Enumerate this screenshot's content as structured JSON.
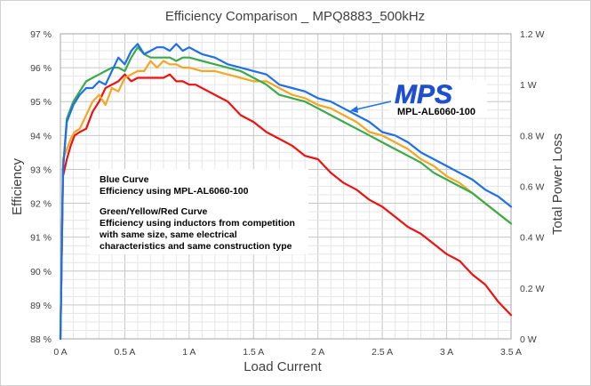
{
  "chart_data": {
    "type": "line",
    "title": "Efficiency Comparison _ MPQ8883_500kHz",
    "xlabel": "Load Current",
    "ylabel": "Efficiency",
    "y2label": "Total Power Loss",
    "xlim": [
      0,
      3.5
    ],
    "ylim": [
      88,
      97
    ],
    "y2lim": [
      0,
      1.2
    ],
    "xticks": [
      "0 A",
      "0.5 A",
      "1 A",
      "1.5 A",
      "2 A",
      "2.5 A",
      "3 A",
      "3.5 A"
    ],
    "yticks": [
      "88 %",
      "89 %",
      "90 %",
      "91 %",
      "92 %",
      "93 %",
      "94 %",
      "95 %",
      "96 %",
      "97 %"
    ],
    "y2ticks": [
      "0 W",
      "0.2 W",
      "0.4 W",
      "0.6 W",
      "0.8 W",
      "1 W",
      "1.2 W"
    ],
    "grid": true,
    "series": [
      {
        "color": "#ee1111",
        "axis": "left",
        "x": [
          0.0,
          0.02,
          0.05,
          0.08,
          0.11,
          0.15,
          0.2,
          0.25,
          0.3,
          0.35,
          0.4,
          0.45,
          0.5,
          0.55,
          0.6,
          0.65,
          0.7,
          0.75,
          0.8,
          0.85,
          0.9,
          0.95,
          1.0,
          1.05,
          1.1,
          1.15,
          1.2,
          1.3,
          1.4,
          1.5,
          1.6,
          1.7,
          1.8,
          1.9,
          2.0,
          2.1,
          2.2,
          2.3,
          2.4,
          2.5,
          2.6,
          2.7,
          2.8,
          2.9,
          3.0,
          3.1,
          3.2,
          3.3,
          3.4,
          3.5
        ],
        "values": [
          88.0,
          92.8,
          93.3,
          93.7,
          94.0,
          94.1,
          94.2,
          94.7,
          95.0,
          95.4,
          95.5,
          95.6,
          95.8,
          95.6,
          95.7,
          95.7,
          95.7,
          95.7,
          95.7,
          95.8,
          95.6,
          95.6,
          95.5,
          95.5,
          95.4,
          95.3,
          95.2,
          95.0,
          94.6,
          94.4,
          94.1,
          93.9,
          93.7,
          93.4,
          93.3,
          92.9,
          92.6,
          92.4,
          92.1,
          91.9,
          91.6,
          91.3,
          91.1,
          90.8,
          90.5,
          90.3,
          89.9,
          89.6,
          89.1,
          88.7
        ]
      },
      {
        "color": "#f5a623",
        "axis": "left",
        "x": [
          0.0,
          0.02,
          0.05,
          0.08,
          0.11,
          0.15,
          0.2,
          0.25,
          0.3,
          0.35,
          0.4,
          0.45,
          0.5,
          0.55,
          0.6,
          0.65,
          0.7,
          0.75,
          0.8,
          0.85,
          0.9,
          0.95,
          1.0,
          1.1,
          1.2,
          1.3,
          1.4,
          1.5,
          1.6,
          1.7,
          1.8,
          1.9,
          2.0,
          2.1,
          2.2,
          2.3,
          2.4,
          2.5,
          2.6,
          2.7,
          2.8,
          2.9,
          3.0,
          3.1,
          3.2,
          3.3,
          3.4,
          3.5
        ],
        "values": [
          88.0,
          93.3,
          93.6,
          93.9,
          94.1,
          94.2,
          94.6,
          95.0,
          95.2,
          94.9,
          95.4,
          95.3,
          95.7,
          95.8,
          95.9,
          95.9,
          96.2,
          96.0,
          96.2,
          96.1,
          96.1,
          96.0,
          96.0,
          95.9,
          95.9,
          95.8,
          95.7,
          95.6,
          95.6,
          95.4,
          95.2,
          95.1,
          94.9,
          94.8,
          94.6,
          94.4,
          94.1,
          94.0,
          93.8,
          93.6,
          93.3,
          93.1,
          92.8,
          92.6,
          92.3,
          92.0,
          91.7,
          91.4
        ]
      },
      {
        "color": "#3aaa4a",
        "axis": "left",
        "x": [
          0.0,
          0.02,
          0.05,
          0.1,
          0.15,
          0.2,
          0.25,
          0.3,
          0.35,
          0.4,
          0.45,
          0.5,
          0.55,
          0.6,
          0.65,
          0.7,
          0.75,
          0.8,
          0.85,
          0.9,
          0.95,
          1.0,
          1.1,
          1.2,
          1.3,
          1.4,
          1.5,
          1.6,
          1.7,
          1.8,
          1.9,
          2.0,
          2.1,
          2.2,
          2.3,
          2.4,
          2.5,
          2.6,
          2.7,
          2.8,
          2.9,
          3.0,
          3.1,
          3.2,
          3.3,
          3.4,
          3.5
        ],
        "values": [
          88.0,
          93.0,
          94.5,
          95.0,
          95.3,
          95.6,
          95.7,
          95.8,
          95.9,
          96.0,
          96.0,
          95.9,
          96.3,
          96.6,
          96.4,
          96.3,
          96.3,
          96.3,
          96.3,
          96.2,
          96.3,
          96.3,
          96.2,
          96.1,
          96.0,
          95.9,
          95.7,
          95.5,
          95.2,
          95.1,
          95.0,
          94.8,
          94.6,
          94.4,
          94.2,
          94.0,
          93.8,
          93.6,
          93.4,
          93.2,
          92.9,
          92.7,
          92.5,
          92.3,
          92.0,
          91.7,
          91.4
        ]
      },
      {
        "color": "#1f6fe8",
        "axis": "left",
        "x": [
          0.0,
          0.02,
          0.05,
          0.1,
          0.15,
          0.2,
          0.25,
          0.3,
          0.35,
          0.4,
          0.45,
          0.5,
          0.55,
          0.6,
          0.65,
          0.7,
          0.75,
          0.8,
          0.85,
          0.9,
          0.95,
          1.0,
          1.05,
          1.1,
          1.2,
          1.3,
          1.4,
          1.5,
          1.6,
          1.7,
          1.8,
          1.9,
          2.0,
          2.1,
          2.2,
          2.3,
          2.4,
          2.5,
          2.6,
          2.7,
          2.8,
          2.9,
          3.0,
          3.1,
          3.2,
          3.3,
          3.4,
          3.5
        ],
        "values": [
          88.0,
          93.0,
          94.4,
          94.9,
          95.2,
          95.4,
          95.4,
          95.6,
          95.5,
          95.9,
          96.3,
          96.1,
          96.5,
          96.7,
          96.4,
          96.5,
          96.6,
          96.6,
          96.5,
          96.7,
          96.5,
          96.6,
          96.5,
          96.4,
          96.3,
          96.1,
          96.0,
          95.9,
          95.8,
          95.5,
          95.4,
          95.3,
          95.1,
          95.0,
          94.8,
          94.6,
          94.4,
          94.1,
          94.0,
          93.8,
          93.5,
          93.3,
          93.1,
          92.9,
          92.7,
          92.4,
          92.2,
          91.9
        ]
      }
    ],
    "annotations": {
      "blue_heading": "Blue Curve",
      "blue_text": "Efficiency using MPL-AL6060-100",
      "other_heading": "Green/Yellow/Red Curve",
      "other_line1": "Efficiency using inductors from competition",
      "other_line2": "with same size, same electrical",
      "other_line3": "characteristics and same construction type",
      "brand_logo": "MPS",
      "brand_label": "MPL-AL6060-100"
    }
  }
}
